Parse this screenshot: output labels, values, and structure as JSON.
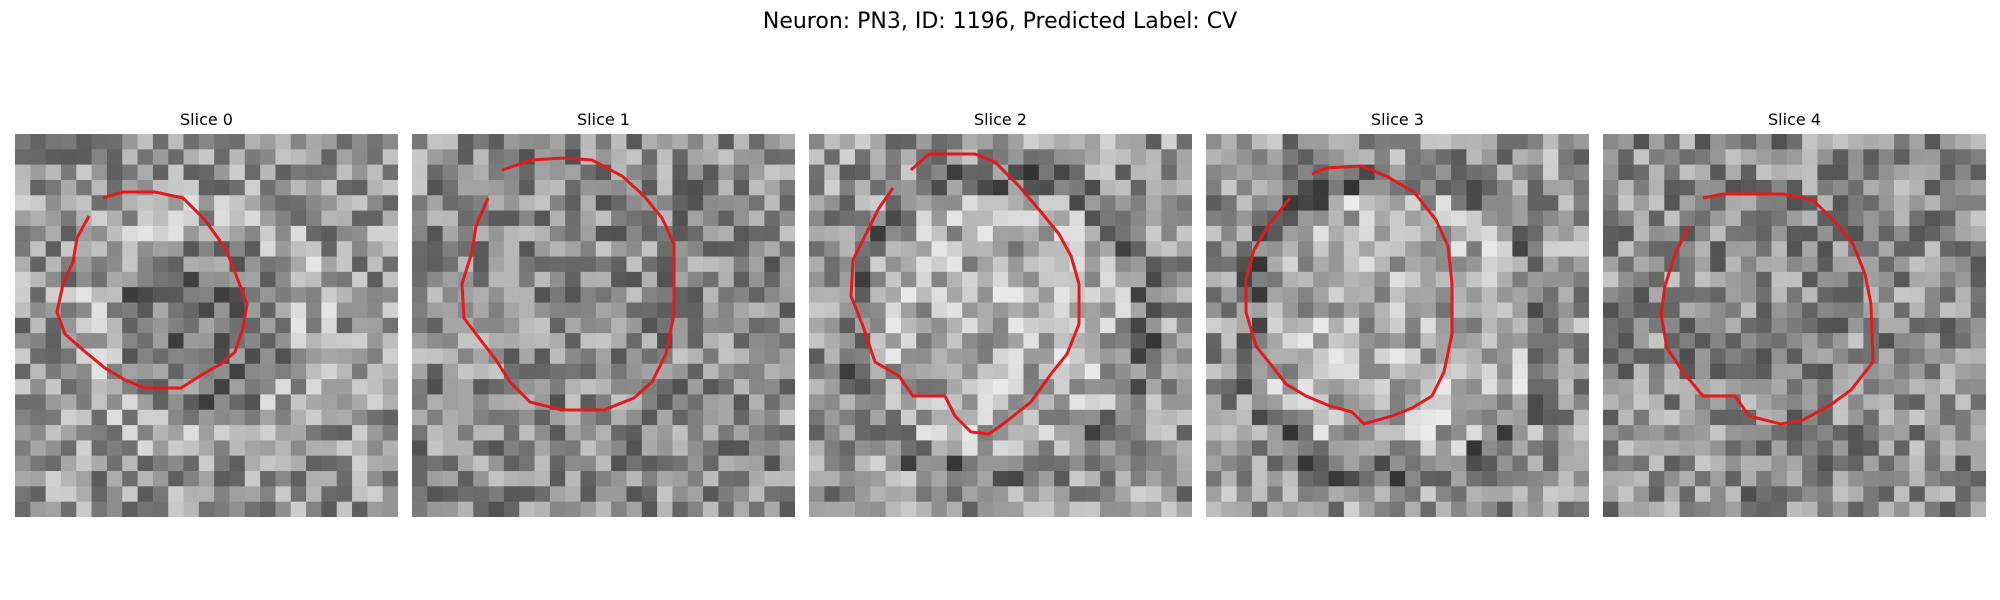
{
  "figure": {
    "title": "Neuron: PN3, ID: 1196, Predicted Label: CV"
  },
  "panels": [
    {
      "title": "Slice 0"
    },
    {
      "title": "Slice 1"
    },
    {
      "title": "Slice 2"
    },
    {
      "title": "Slice 3"
    },
    {
      "title": "Slice 4"
    }
  ],
  "colors": {
    "contour": "#e31a1c",
    "colormap": "grayscale"
  }
}
